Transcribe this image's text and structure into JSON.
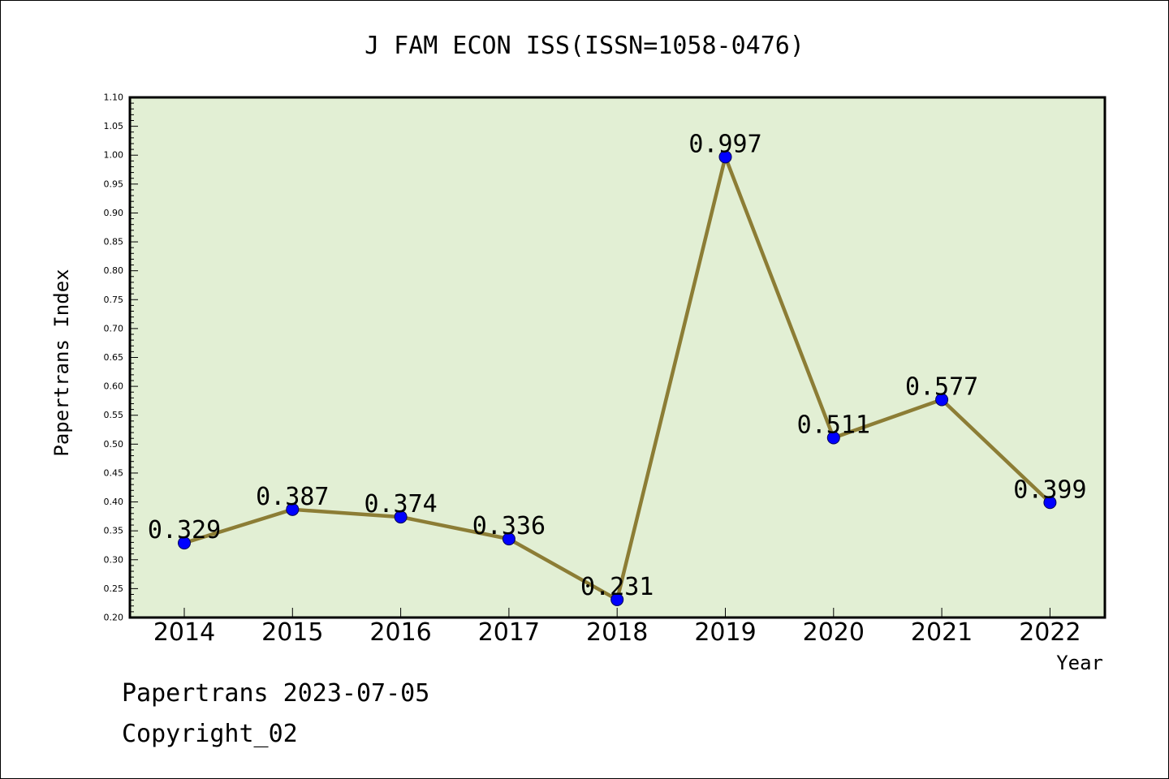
{
  "chart_data": {
    "type": "line",
    "title": "J FAM ECON ISS(ISSN=1058-0476)",
    "xlabel": "Year",
    "ylabel": "Papertrans Index",
    "x": [
      "2014",
      "2015",
      "2016",
      "2017",
      "2018",
      "2019",
      "2020",
      "2021",
      "2022"
    ],
    "series": [
      {
        "values": [
          0.329,
          0.387,
          0.374,
          0.336,
          0.231,
          0.997,
          0.511,
          0.577,
          0.399
        ],
        "labels": [
          "0.329",
          "0.387",
          "0.374",
          "0.336",
          "0.231",
          "0.997",
          "0.511",
          "0.577",
          "0.399"
        ]
      }
    ],
    "ylim": [
      0.2,
      1.1
    ],
    "yticks": [
      "0.20",
      "0.25",
      "0.30",
      "0.35",
      "0.40",
      "0.45",
      "0.50",
      "0.55",
      "0.60",
      "0.65",
      "0.70",
      "0.75",
      "0.80",
      "0.85",
      "0.90",
      "0.95",
      "1.00",
      "1.05",
      "1.10"
    ],
    "grid": false,
    "colors": {
      "line": "#8c7d35",
      "marker": "#0000ff",
      "plot_bg": "#e2efd4"
    }
  },
  "footer": {
    "line1": "Papertrans 2023-07-05",
    "line2": "Copyright_02"
  }
}
